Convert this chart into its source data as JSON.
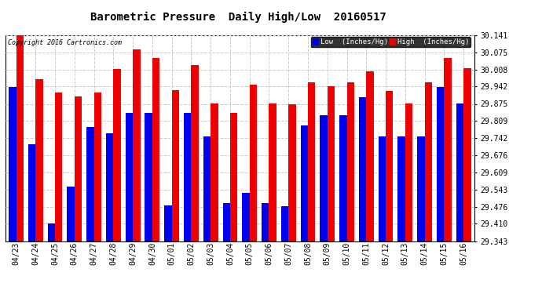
{
  "title": "Barometric Pressure  Daily High/Low  20160517",
  "copyright": "Copyright 2016 Cartronics.com",
  "dates": [
    "04/23",
    "04/24",
    "04/25",
    "04/26",
    "04/27",
    "04/28",
    "04/29",
    "04/30",
    "05/01",
    "05/02",
    "05/03",
    "05/04",
    "05/05",
    "05/06",
    "05/07",
    "05/08",
    "05/09",
    "05/10",
    "05/11",
    "05/12",
    "05/13",
    "05/14",
    "05/15",
    "05/16"
  ],
  "low_values": [
    29.94,
    29.718,
    29.41,
    29.553,
    29.785,
    29.76,
    29.84,
    29.84,
    29.48,
    29.84,
    29.75,
    29.49,
    29.53,
    29.49,
    29.478,
    29.79,
    29.83,
    29.83,
    29.9,
    29.75,
    29.75,
    29.748,
    29.94,
    29.878
  ],
  "high_values": [
    30.141,
    29.972,
    29.918,
    29.905,
    29.92,
    30.01,
    30.085,
    30.052,
    29.928,
    30.025,
    29.878,
    29.84,
    29.948,
    29.878,
    29.872,
    29.958,
    29.942,
    29.958,
    30.0,
    29.925,
    29.878,
    29.958,
    30.052,
    30.012
  ],
  "low_color": "#0000EE",
  "high_color": "#EE0000",
  "bg_color": "#FFFFFF",
  "plot_bg_color": "#FFFFFF",
  "grid_color": "#CCCCCC",
  "ymin": 29.343,
  "ymax": 30.141,
  "yticks": [
    29.343,
    29.41,
    29.476,
    29.543,
    29.609,
    29.676,
    29.742,
    29.809,
    29.875,
    29.942,
    30.008,
    30.075,
    30.141
  ],
  "title_fontsize": 10,
  "tick_fontsize": 7,
  "copyright_fontsize": 6,
  "legend_low_label": "Low  (Inches/Hg)",
  "legend_high_label": "High  (Inches/Hg)"
}
